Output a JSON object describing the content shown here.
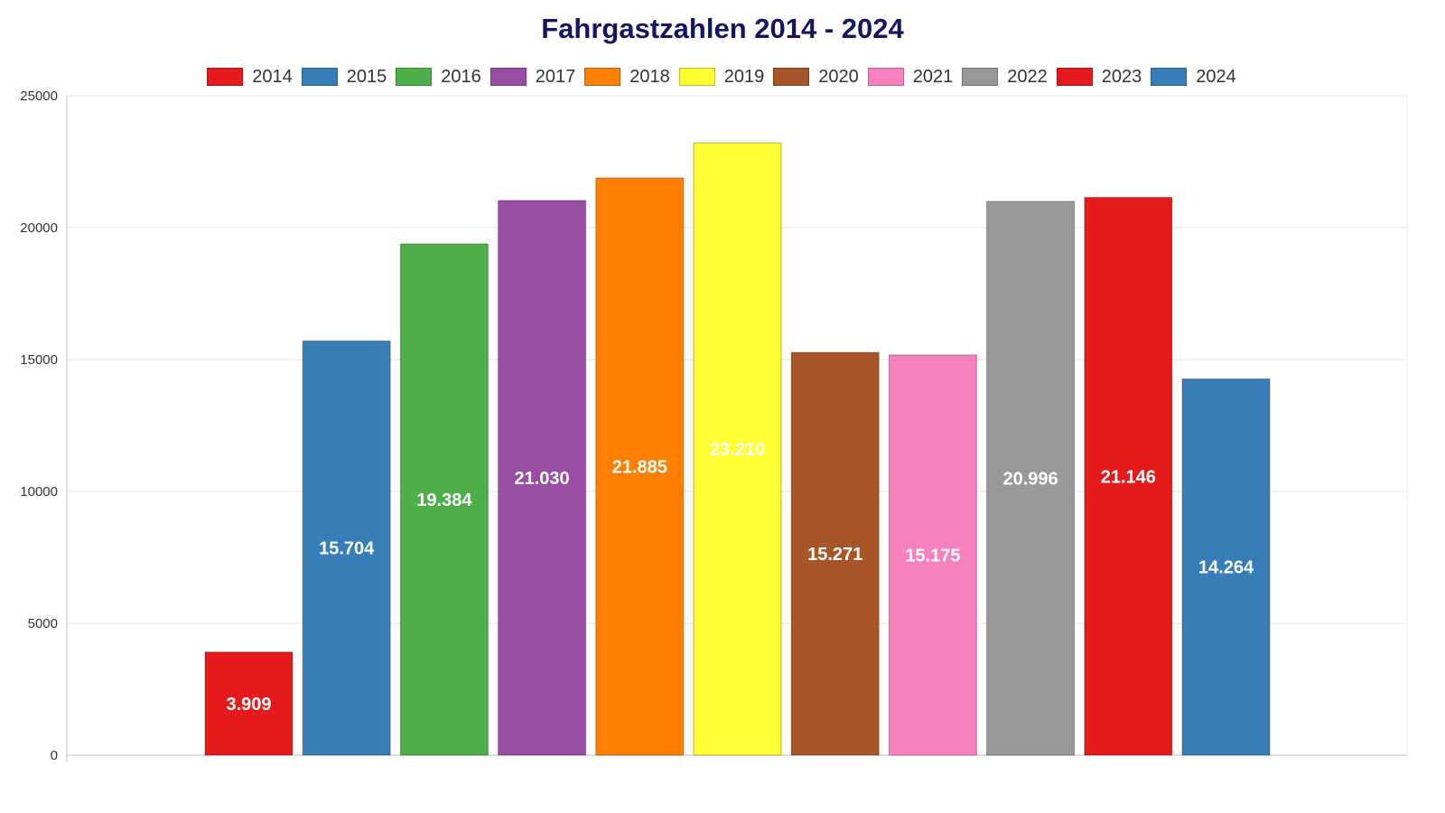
{
  "chart_data": {
    "type": "bar",
    "title": "Fahrgastzahlen 2014 - 2024",
    "categories": [
      "2014",
      "2015",
      "2016",
      "2017",
      "2018",
      "2019",
      "2020",
      "2021",
      "2022",
      "2023",
      "2024"
    ],
    "values": [
      3909,
      15704,
      19384,
      21030,
      21885,
      23210,
      15271,
      15175,
      20996,
      21146,
      14264
    ],
    "value_labels": [
      "3.909",
      "15.704",
      "19.384",
      "21.030",
      "21.885",
      "23.210",
      "15.271",
      "15.175",
      "20.996",
      "21.146",
      "14.264"
    ],
    "colors": [
      "#e41a1c",
      "#377eb8",
      "#4daf4a",
      "#984ea3",
      "#ff7f00",
      "#ffff33",
      "#a65628",
      "#f781bf",
      "#999999",
      "#e41a1c",
      "#377eb8"
    ],
    "yticks": [
      0,
      5000,
      10000,
      15000,
      20000,
      25000
    ],
    "ylim": [
      0,
      25000
    ],
    "grid": true,
    "legend_position": "top-center"
  }
}
